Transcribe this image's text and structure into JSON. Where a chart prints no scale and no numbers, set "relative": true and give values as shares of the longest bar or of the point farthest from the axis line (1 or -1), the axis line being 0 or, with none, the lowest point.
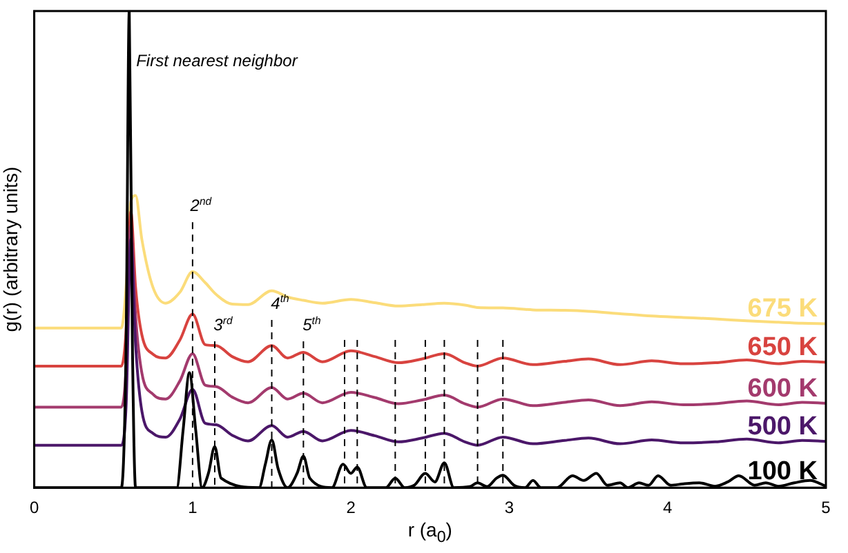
{
  "chart_data": {
    "type": "line",
    "relative": true,
    "xlabel": "r (a$_{0}$)",
    "ylabel": "g(r) (arbitrary units)",
    "xlim": [
      0,
      5
    ],
    "xticks": [
      0,
      1,
      2,
      3,
      4,
      5
    ],
    "tick_labels": "x",
    "grid": false,
    "legend": false,
    "marker": "none",
    "line_style": "solid",
    "x": [
      0,
      0.55,
      0.58,
      0.61,
      0.64,
      0.68,
      0.75,
      0.83,
      0.92,
      1.0,
      1.08,
      1.15,
      1.25,
      1.35,
      1.5,
      1.6,
      1.7,
      1.82,
      2.0,
      2.15,
      2.3,
      2.45,
      2.59,
      2.72,
      2.8,
      2.96,
      3.15,
      3.35,
      3.5,
      3.7,
      3.9,
      4.1,
      4.3,
      4.5,
      4.7,
      4.85,
      5.0
    ],
    "series": [
      {
        "name": "675 K",
        "color": "#fbdc7a",
        "values": [
          0.335,
          0.335,
          0.42,
          0.6,
          0.613,
          0.52,
          0.42,
          0.387,
          0.41,
          0.453,
          0.43,
          0.405,
          0.385,
          0.384,
          0.413,
          0.4,
          0.393,
          0.387,
          0.395,
          0.388,
          0.381,
          0.384,
          0.387,
          0.383,
          0.378,
          0.377,
          0.373,
          0.372,
          0.37,
          0.365,
          0.36,
          0.357,
          0.354,
          0.35,
          0.347,
          0.345,
          0.344
        ]
      },
      {
        "name": "650 K",
        "color": "#d8433f",
        "values": [
          0.255,
          0.255,
          0.33,
          0.579,
          0.42,
          0.32,
          0.28,
          0.272,
          0.31,
          0.364,
          0.3,
          0.298,
          0.275,
          0.264,
          0.298,
          0.272,
          0.284,
          0.264,
          0.287,
          0.275,
          0.262,
          0.27,
          0.281,
          0.262,
          0.255,
          0.272,
          0.258,
          0.265,
          0.27,
          0.258,
          0.266,
          0.26,
          0.262,
          0.268,
          0.26,
          0.265,
          0.263
        ]
      },
      {
        "name": "600 K",
        "color": "#a33a6d",
        "values": [
          0.169,
          0.169,
          0.25,
          0.55,
          0.36,
          0.24,
          0.196,
          0.186,
          0.224,
          0.281,
          0.215,
          0.212,
          0.19,
          0.178,
          0.21,
          0.186,
          0.198,
          0.178,
          0.2,
          0.189,
          0.176,
          0.184,
          0.194,
          0.176,
          0.169,
          0.186,
          0.172,
          0.179,
          0.184,
          0.172,
          0.18,
          0.174,
          0.176,
          0.182,
          0.174,
          0.179,
          0.177
        ]
      },
      {
        "name": "500 K",
        "color": "#4b1769",
        "values": [
          0.089,
          0.089,
          0.17,
          0.521,
          0.3,
          0.16,
          0.114,
          0.106,
          0.144,
          0.206,
          0.135,
          0.132,
          0.11,
          0.098,
          0.13,
          0.106,
          0.118,
          0.098,
          0.12,
          0.109,
          0.096,
          0.104,
          0.114,
          0.096,
          0.089,
          0.106,
          0.092,
          0.099,
          0.104,
          0.092,
          0.1,
          0.094,
          0.096,
          0.102,
          0.094,
          0.099,
          0.097
        ]
      },
      {
        "name": "100 K",
        "color": "#000000",
        "x": [
          0,
          0.55,
          0.58,
          0.6,
          0.62,
          0.64,
          0.9,
          0.94,
          0.98,
          1.02,
          1.06,
          1.1,
          1.14,
          1.18,
          1.42,
          1.46,
          1.5,
          1.54,
          1.6,
          1.66,
          1.7,
          1.74,
          1.88,
          1.95,
          2.0,
          2.04,
          2.1,
          2.22,
          2.28,
          2.34,
          2.4,
          2.47,
          2.53,
          2.59,
          2.65,
          2.75,
          2.8,
          2.86,
          2.92,
          2.96,
          3.03,
          3.1,
          3.15,
          3.2,
          3.3,
          3.4,
          3.47,
          3.55,
          3.62,
          3.7,
          3.75,
          3.82,
          3.88,
          3.94,
          4.02,
          4.1,
          4.2,
          4.3,
          4.38,
          4.45,
          4.55,
          4.62,
          4.7,
          4.8,
          4.9,
          5.0
        ],
        "values": [
          0,
          0,
          0.3,
          1,
          0.3,
          0,
          0,
          0.12,
          0.241,
          0.12,
          0,
          0.03,
          0.086,
          0.02,
          0,
          0.05,
          0.1,
          0.04,
          0,
          0.03,
          0.066,
          0.02,
          0,
          0.049,
          0.03,
          0.043,
          0,
          0,
          0.02,
          0,
          0.005,
          0.03,
          0.012,
          0.052,
          0,
          0.002,
          0.01,
          0.002,
          0.02,
          0.026,
          0.005,
          0,
          0.015,
          0,
          0,
          0.025,
          0.015,
          0.03,
          0.005,
          0.01,
          0,
          0.01,
          0.005,
          0.025,
          0.005,
          0.008,
          0.01,
          0.003,
          0.012,
          0.025,
          0.005,
          0.01,
          0.003,
          0.01,
          0.015,
          0.003
        ]
      }
    ],
    "ref_lines": [
      {
        "axis": "x",
        "value": 1.0,
        "color": "#000000",
        "line_style": "dashed",
        "label": "2$^{nd}$"
      },
      {
        "axis": "x",
        "value": 1.14,
        "color": "#000000",
        "line_style": "dashed",
        "label": "3$^{rd}$"
      },
      {
        "axis": "x",
        "value": 1.5,
        "color": "#000000",
        "line_style": "dashed",
        "label": "4$^{th}$"
      },
      {
        "axis": "x",
        "value": 1.7,
        "color": "#000000",
        "line_style": "dashed",
        "label": "5$^{th}$"
      },
      {
        "axis": "x",
        "value": 1.96,
        "color": "#000000",
        "line_style": "dashed"
      },
      {
        "axis": "x",
        "value": 2.04,
        "color": "#000000",
        "line_style": "dashed"
      },
      {
        "axis": "x",
        "value": 2.28,
        "color": "#000000",
        "line_style": "dashed"
      },
      {
        "axis": "x",
        "value": 2.47,
        "color": "#000000",
        "line_style": "dashed"
      },
      {
        "axis": "x",
        "value": 2.59,
        "color": "#000000",
        "line_style": "dashed"
      },
      {
        "axis": "x",
        "value": 2.8,
        "color": "#000000",
        "line_style": "dashed"
      },
      {
        "axis": "x",
        "value": 2.96,
        "color": "#000000",
        "line_style": "dashed"
      }
    ],
    "annotations": [
      {
        "text": "First nearest neighbor",
        "x": 0.6,
        "y": 1
      }
    ]
  }
}
